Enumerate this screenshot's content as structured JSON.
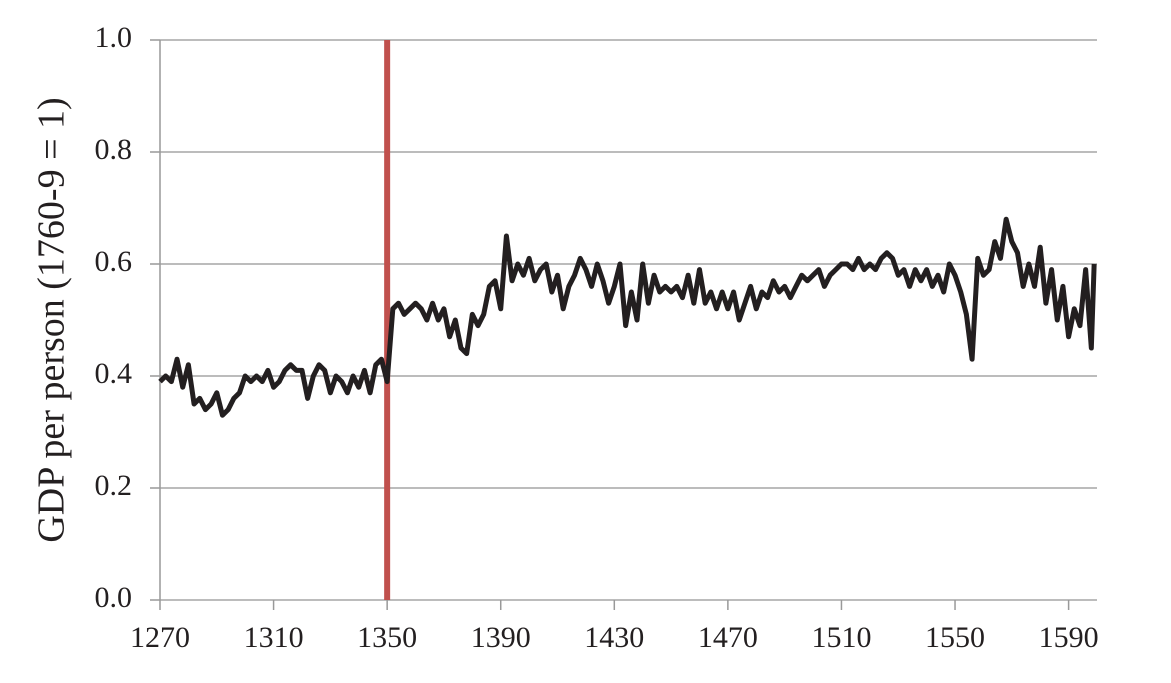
{
  "chart_data": {
    "type": "line",
    "y_label": "GDP per person (1760-9 = 1)",
    "x": [
      1270,
      1272,
      1274,
      1276,
      1278,
      1280,
      1282,
      1284,
      1286,
      1288,
      1290,
      1292,
      1294,
      1296,
      1298,
      1300,
      1302,
      1304,
      1306,
      1308,
      1310,
      1312,
      1314,
      1316,
      1318,
      1320,
      1322,
      1324,
      1326,
      1328,
      1330,
      1332,
      1334,
      1336,
      1338,
      1340,
      1342,
      1344,
      1346,
      1348,
      1350,
      1352,
      1354,
      1356,
      1358,
      1360,
      1362,
      1364,
      1366,
      1368,
      1370,
      1372,
      1374,
      1376,
      1378,
      1380,
      1382,
      1384,
      1386,
      1388,
      1390,
      1392,
      1394,
      1396,
      1398,
      1400,
      1402,
      1404,
      1406,
      1408,
      1410,
      1412,
      1414,
      1416,
      1418,
      1420,
      1422,
      1424,
      1426,
      1428,
      1430,
      1432,
      1434,
      1436,
      1438,
      1440,
      1442,
      1444,
      1446,
      1448,
      1450,
      1452,
      1454,
      1456,
      1458,
      1460,
      1462,
      1464,
      1466,
      1468,
      1470,
      1472,
      1474,
      1476,
      1478,
      1480,
      1482,
      1484,
      1486,
      1488,
      1490,
      1492,
      1494,
      1496,
      1498,
      1500,
      1502,
      1504,
      1506,
      1508,
      1510,
      1512,
      1514,
      1516,
      1518,
      1520,
      1522,
      1524,
      1526,
      1528,
      1530,
      1532,
      1534,
      1536,
      1538,
      1540,
      1542,
      1544,
      1546,
      1548,
      1550,
      1552,
      1554,
      1556,
      1558,
      1560,
      1562,
      1564,
      1566,
      1568,
      1570,
      1572,
      1574,
      1576,
      1578,
      1580,
      1582,
      1584,
      1586,
      1588,
      1590,
      1592,
      1594,
      1596,
      1598,
      1599
    ],
    "series": [
      {
        "color": "#231f20",
        "values": [
          0.39,
          0.4,
          0.39,
          0.43,
          0.38,
          0.42,
          0.35,
          0.36,
          0.34,
          0.35,
          0.37,
          0.33,
          0.34,
          0.36,
          0.37,
          0.4,
          0.39,
          0.4,
          0.39,
          0.41,
          0.38,
          0.39,
          0.41,
          0.42,
          0.41,
          0.41,
          0.36,
          0.4,
          0.42,
          0.41,
          0.37,
          0.4,
          0.39,
          0.37,
          0.4,
          0.38,
          0.41,
          0.37,
          0.42,
          0.43,
          0.39,
          0.52,
          0.53,
          0.51,
          0.52,
          0.53,
          0.52,
          0.5,
          0.53,
          0.5,
          0.52,
          0.47,
          0.5,
          0.45,
          0.44,
          0.51,
          0.49,
          0.51,
          0.56,
          0.57,
          0.52,
          0.65,
          0.57,
          0.6,
          0.58,
          0.61,
          0.57,
          0.59,
          0.6,
          0.55,
          0.58,
          0.52,
          0.56,
          0.58,
          0.61,
          0.59,
          0.56,
          0.6,
          0.57,
          0.53,
          0.56,
          0.6,
          0.49,
          0.55,
          0.5,
          0.6,
          0.53,
          0.58,
          0.55,
          0.56,
          0.55,
          0.56,
          0.54,
          0.58,
          0.53,
          0.59,
          0.53,
          0.55,
          0.52,
          0.55,
          0.52,
          0.55,
          0.5,
          0.53,
          0.56,
          0.52,
          0.55,
          0.54,
          0.57,
          0.55,
          0.56,
          0.54,
          0.56,
          0.58,
          0.57,
          0.58,
          0.59,
          0.56,
          0.58,
          0.59,
          0.6,
          0.6,
          0.59,
          0.61,
          0.59,
          0.6,
          0.59,
          0.61,
          0.62,
          0.61,
          0.58,
          0.59,
          0.56,
          0.59,
          0.57,
          0.59,
          0.56,
          0.58,
          0.55,
          0.6,
          0.58,
          0.55,
          0.51,
          0.43,
          0.61,
          0.58,
          0.59,
          0.64,
          0.61,
          0.68,
          0.64,
          0.62,
          0.56,
          0.6,
          0.56,
          0.63,
          0.53,
          0.59,
          0.5,
          0.56,
          0.47,
          0.52,
          0.49,
          0.59,
          0.45,
          0.6
        ]
      }
    ],
    "vline": {
      "x": 1350,
      "color": "#c0504d"
    },
    "xlim": [
      1270,
      1600
    ],
    "ylim": [
      0,
      1
    ],
    "xticks": [
      1270,
      1310,
      1350,
      1390,
      1430,
      1470,
      1510,
      1550,
      1590
    ],
    "yticks": [
      {
        "value": 0,
        "label": "0.0"
      },
      0.2,
      0.4,
      0.6,
      0.8,
      {
        "value": 1,
        "label": "1.0"
      }
    ],
    "grid": true
  }
}
